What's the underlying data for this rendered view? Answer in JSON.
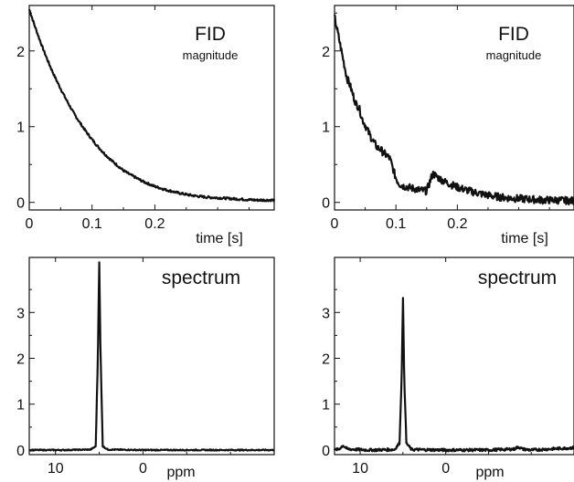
{
  "chart_data": [
    {
      "type": "line",
      "panel": "top-left",
      "title": "FID",
      "subtitle": "magnitude",
      "xlabel": "time [s]",
      "ylabel": "",
      "xlim": [
        0,
        0.39
      ],
      "ylim": [
        -0.1,
        2.6
      ],
      "xticks": [
        "0",
        "0.1",
        "0.2"
      ],
      "yticks": [
        "0",
        "1",
        "2"
      ],
      "noise": 0.015,
      "series": [
        {
          "x": [
            0,
            0.01,
            0.02,
            0.03,
            0.04,
            0.05,
            0.06,
            0.07,
            0.08,
            0.09,
            0.1,
            0.11,
            0.12,
            0.13,
            0.14,
            0.15,
            0.16,
            0.18,
            0.2,
            0.22,
            0.24,
            0.26,
            0.28,
            0.3,
            0.32,
            0.34,
            0.36,
            0.38,
            0.39
          ],
          "values": [
            2.55,
            2.3,
            2.07,
            1.86,
            1.67,
            1.5,
            1.34,
            1.19,
            1.06,
            0.94,
            0.83,
            0.73,
            0.64,
            0.56,
            0.49,
            0.42,
            0.37,
            0.28,
            0.21,
            0.16,
            0.12,
            0.09,
            0.07,
            0.06,
            0.05,
            0.04,
            0.03,
            0.03,
            0.03
          ]
        }
      ]
    },
    {
      "type": "line",
      "panel": "top-right",
      "title": "FID",
      "subtitle": "magnitude",
      "xlabel": "time [s]",
      "ylabel": "",
      "xlim": [
        0,
        0.39
      ],
      "ylim": [
        -0.1,
        2.6
      ],
      "xticks": [
        "0",
        "0.1",
        "0.2"
      ],
      "yticks": [
        "0",
        "1",
        "2"
      ],
      "noise": 0.05,
      "series": [
        {
          "x": [
            0,
            0.005,
            0.01,
            0.015,
            0.02,
            0.025,
            0.03,
            0.035,
            0.04,
            0.045,
            0.05,
            0.055,
            0.06,
            0.065,
            0.07,
            0.075,
            0.08,
            0.085,
            0.09,
            0.095,
            0.1,
            0.105,
            0.11,
            0.12,
            0.13,
            0.14,
            0.15,
            0.16,
            0.17,
            0.18,
            0.2,
            0.22,
            0.24,
            0.26,
            0.28,
            0.3,
            0.32,
            0.34,
            0.36,
            0.39
          ],
          "values": [
            2.45,
            2.25,
            2.05,
            1.85,
            1.65,
            1.55,
            1.42,
            1.3,
            1.25,
            1.1,
            1.02,
            0.93,
            0.85,
            0.78,
            0.72,
            0.7,
            0.65,
            0.62,
            0.58,
            0.45,
            0.32,
            0.25,
            0.22,
            0.2,
            0.18,
            0.16,
            0.15,
            0.38,
            0.32,
            0.27,
            0.2,
            0.15,
            0.11,
            0.08,
            0.06,
            0.05,
            0.04,
            0.03,
            0.03,
            0.02
          ]
        }
      ]
    },
    {
      "type": "line",
      "panel": "bottom-left",
      "title": "spectrum",
      "xlabel": "ppm",
      "ylabel": "",
      "x_reversed": true,
      "xlim": [
        13,
        -15
      ],
      "ylim": [
        -0.1,
        4.2
      ],
      "xticks": [
        "10",
        "0"
      ],
      "yticks": [
        "0",
        "1",
        "2",
        "3"
      ],
      "noise": 0.012,
      "series": [
        {
          "x": [
            13,
            9,
            6,
            5.4,
            5.15,
            5.0,
            4.85,
            4.6,
            4.0,
            0,
            -5,
            -10,
            -15
          ],
          "values": [
            0,
            0,
            0.01,
            0.08,
            2.1,
            4.1,
            2.1,
            0.08,
            0.01,
            0,
            0,
            0,
            0
          ]
        }
      ]
    },
    {
      "type": "line",
      "panel": "bottom-right",
      "title": "spectrum",
      "xlabel": "ppm",
      "ylabel": "",
      "x_reversed": true,
      "xlim": [
        13,
        -15
      ],
      "ylim": [
        -0.1,
        4.2
      ],
      "xticks": [
        "10",
        "0"
      ],
      "yticks": [
        "0",
        "1",
        "2",
        "3"
      ],
      "noise": 0.03,
      "series": [
        {
          "x": [
            13,
            12.5,
            12,
            11.5,
            9,
            6,
            5.4,
            5.15,
            5.0,
            4.85,
            4.6,
            4.0,
            0,
            -5,
            -8,
            -8.5,
            -9,
            -10,
            -15
          ],
          "values": [
            0,
            0.02,
            0.1,
            0.02,
            0,
            0.01,
            0.15,
            1.6,
            3.3,
            1.6,
            0.15,
            0.01,
            0,
            0,
            0.02,
            0.07,
            0.02,
            0,
            0.05
          ]
        }
      ]
    }
  ]
}
